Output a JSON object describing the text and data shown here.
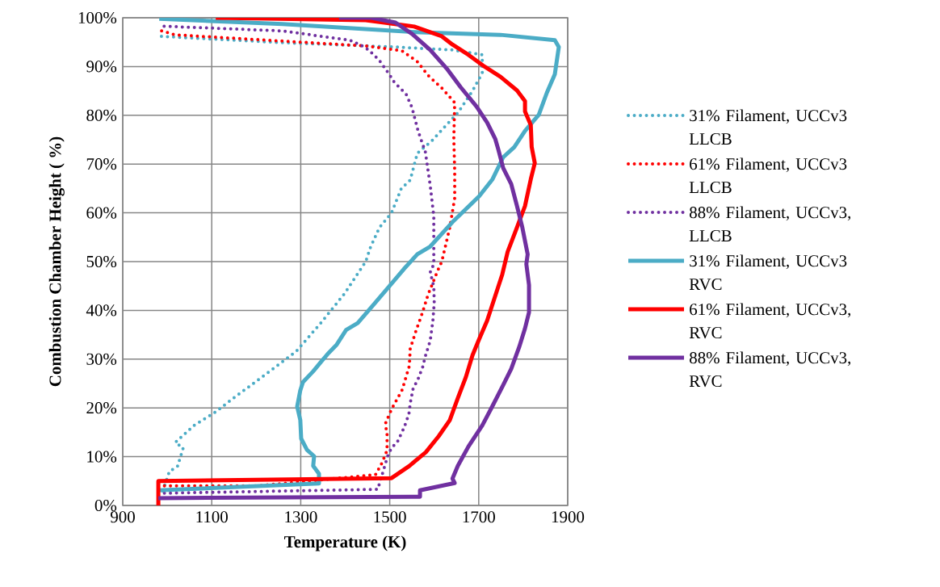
{
  "chart_data": {
    "type": "line",
    "xlabel": "Temperature (K)",
    "ylabel": "Combustion Chamber Height ( %)",
    "xlim": [
      900,
      1900
    ],
    "xticks": [
      900,
      1100,
      1300,
      1500,
      1700,
      1900
    ],
    "ylim": [
      0,
      100
    ],
    "yticks": [
      {
        "value": 0,
        "label": "0%"
      },
      {
        "value": 10,
        "label": "10%"
      },
      {
        "value": 20,
        "label": "20%"
      },
      {
        "value": 30,
        "label": "30%"
      },
      {
        "value": 40,
        "label": "40%"
      },
      {
        "value": 50,
        "label": "50%"
      },
      {
        "value": 60,
        "label": "60%"
      },
      {
        "value": 70,
        "label": "70%"
      },
      {
        "value": 80,
        "label": "80%"
      },
      {
        "value": 90,
        "label": "90%"
      },
      {
        "value": 100,
        "label": "100%"
      }
    ],
    "grid": true,
    "legend": "right",
    "series": [
      {
        "name": "31% Filament, UCCv3 LLCB",
        "color": "#4bacc6",
        "line_style": "dotted",
        "x": [
          990,
          1005,
          1023,
          1036,
          1018,
          1060,
          1109,
          1156,
          1223,
          1290,
          1345,
          1399,
          1446,
          1457,
          1477,
          1504,
          1526,
          1546,
          1562,
          1595,
          1622,
          1653,
          1686,
          1708,
          1708,
          1641,
          1513,
          1259,
          982
        ],
        "values": [
          3,
          7,
          8,
          11.8,
          12.9,
          16.4,
          19.2,
          22.5,
          27,
          31.6,
          37.4,
          43.5,
          50,
          53,
          57,
          60,
          65,
          66.7,
          72.2,
          74.8,
          77.5,
          80.5,
          85,
          88.7,
          92.4,
          93.4,
          94,
          94.9,
          96.2
        ]
      },
      {
        "name": "61% Filament, UCCv3 LLCB",
        "color": "#ff0000",
        "line_style": "dotted",
        "x": [
          980,
          1200,
          1468,
          1483,
          1494,
          1494,
          1490,
          1499,
          1508,
          1528,
          1544,
          1546,
          1559,
          1573,
          1586,
          1608,
          1617,
          1635,
          1646,
          1646,
          1644,
          1646,
          1619,
          1586,
          1562,
          1528,
          1450,
          1018,
          980
        ],
        "values": [
          4,
          4,
          6.3,
          8.8,
          11.3,
          14.7,
          16.7,
          18.7,
          20.4,
          23.7,
          28.6,
          32.1,
          35.8,
          39.4,
          43.2,
          48.2,
          50,
          57,
          63,
          68.5,
          75.2,
          82.6,
          85.4,
          88.2,
          91,
          93.2,
          94.2,
          96.5,
          97.5
        ]
      },
      {
        "name": "88% Filament, UCCv3, LLCB",
        "color": "#7030a0",
        "line_style": "dotted",
        "x": [
          980,
          1473,
          1495,
          1504,
          1517,
          1532,
          1543,
          1546,
          1553,
          1562,
          1575,
          1579,
          1591,
          1597,
          1600,
          1599,
          1591,
          1599,
          1599,
          1591,
          1580,
          1564,
          1550,
          1537,
          1510,
          1499,
          1477,
          1463,
          1444,
          1410,
          1259,
          982
        ],
        "values": [
          2.5,
          3.3,
          10,
          11.8,
          13,
          15.9,
          18.7,
          20.9,
          24.2,
          25.5,
          28.6,
          30.3,
          33.8,
          37.9,
          41.6,
          44.9,
          47.8,
          49.5,
          59.3,
          65.6,
          72.5,
          76.7,
          81.6,
          84.3,
          86.8,
          88.4,
          91.2,
          92.5,
          94,
          95.4,
          97.3,
          98.3
        ]
      },
      {
        "name": "31% Filament, UCCv3 RVC",
        "color": "#4bacc6",
        "line_style": "solid",
        "x": [
          980,
          1341,
          1341,
          1328,
          1330,
          1314,
          1301,
          1299,
          1292,
          1299,
          1305,
          1328,
          1346,
          1363,
          1381,
          1402,
          1428,
          1464,
          1495,
          1532,
          1562,
          1591,
          1641,
          1701,
          1731,
          1755,
          1780,
          1804,
          1835,
          1853,
          1871,
          1880,
          1871,
          1749,
          1568,
          1259,
          982
        ],
        "values": [
          3.1,
          4.5,
          6.5,
          8.1,
          10.1,
          11.4,
          13.7,
          17.5,
          20.3,
          23.6,
          25.3,
          27.5,
          29.5,
          31.3,
          33,
          36,
          37.4,
          41.2,
          44.5,
          48.5,
          51.5,
          53.1,
          58.1,
          63.4,
          66.9,
          71.4,
          73.5,
          76.8,
          80.1,
          84.6,
          88.4,
          94,
          95.4,
          96.5,
          97,
          98.7,
          99.8
        ]
      },
      {
        "name": "61% Filament, UCCv3, RVC",
        "color": "#ff0000",
        "line_style": "solid",
        "x": [
          980,
          980,
          1504,
          1544,
          1581,
          1610,
          1635,
          1653,
          1671,
          1686,
          1701,
          1719,
          1735,
          1753,
          1765,
          1786,
          1804,
          1817,
          1826,
          1819,
          1817,
          1804,
          1804,
          1786,
          1749,
          1713,
          1677,
          1641,
          1617,
          1555,
          1446,
          1109
        ],
        "values": [
          0,
          5,
          5.6,
          8.1,
          10.9,
          14.2,
          17.5,
          22,
          26.3,
          30.8,
          34.1,
          37.9,
          42.4,
          47.4,
          52,
          57,
          61.4,
          66.9,
          70.2,
          73.5,
          78,
          80.8,
          82.9,
          85.1,
          87.9,
          90,
          92.4,
          94.5,
          96.2,
          98.2,
          99.5,
          100
        ]
      },
      {
        "name": "88% Filament, UCCv3, RVC",
        "color": "#7030a0",
        "line_style": "solid",
        "x": [
          980,
          1568,
          1568,
          1646,
          1641,
          1653,
          1677,
          1708,
          1731,
          1755,
          1773,
          1791,
          1804,
          1813,
          1813,
          1807,
          1810,
          1798,
          1786,
          1773,
          1755,
          1744,
          1737,
          1719,
          1695,
          1659,
          1628,
          1591,
          1550,
          1513,
          1459,
          1386
        ],
        "values": [
          1.5,
          1.8,
          3.1,
          4.6,
          5.5,
          8.1,
          12.1,
          16.4,
          20.4,
          24.7,
          28,
          32.5,
          36.3,
          39.6,
          45.2,
          49.5,
          51.5,
          57,
          61.4,
          65.9,
          69.2,
          73,
          75.2,
          78.5,
          81.8,
          85.8,
          89.6,
          93.4,
          96.7,
          99,
          100,
          100
        ]
      }
    ]
  }
}
